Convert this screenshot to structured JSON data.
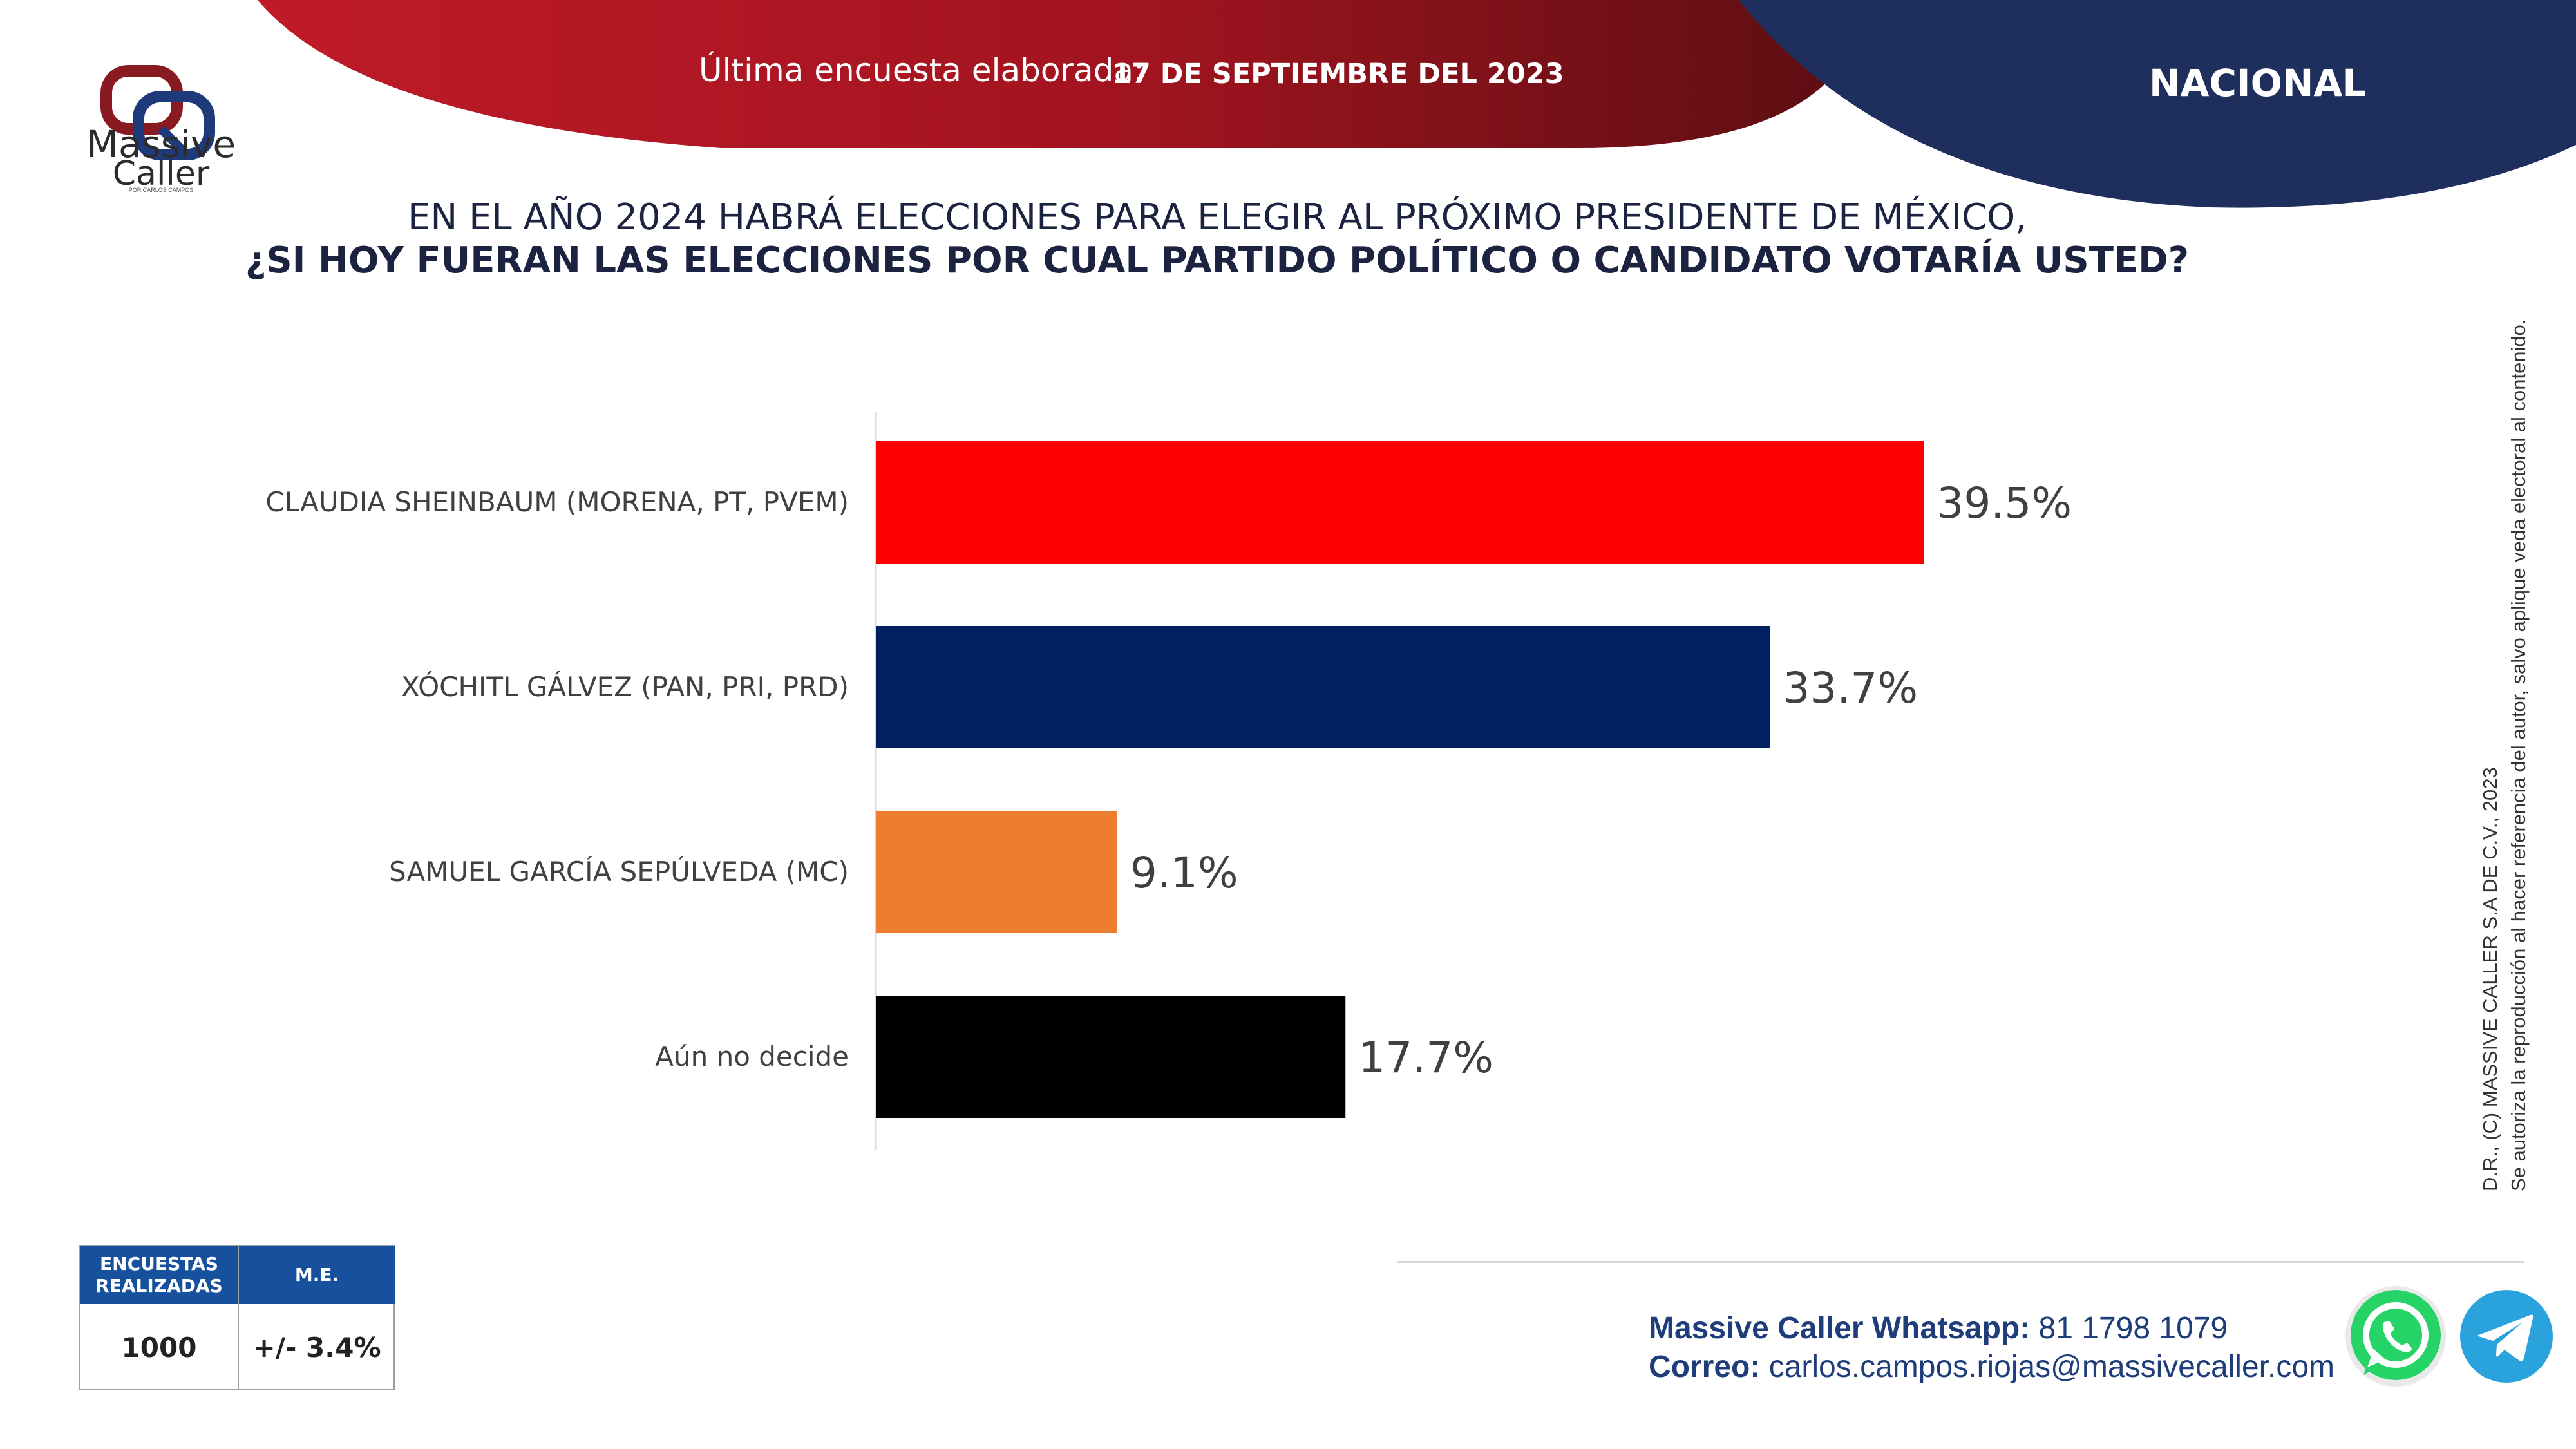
{
  "header": {
    "survey_label": "Última encuesta elaborada:",
    "survey_date": "17 DE SEPTIEMBRE DEL 2023",
    "region": "NACIONAL"
  },
  "logo": {
    "name_line1": "Massive",
    "name_line2": "Caller",
    "tagline": "POR CARLOS CAMPOS"
  },
  "question": {
    "line1": "EN EL AÑO 2024 HABRÁ ELECCIONES PARA ELEGIR AL PRÓXIMO PRESIDENTE DE MÉXICO,",
    "line2": "¿SI HOY FUERAN LAS ELECCIONES POR CUAL PARTIDO POLÍTICO O CANDIDATO VOTARÍA USTED?"
  },
  "chart_data": {
    "type": "bar",
    "orientation": "horizontal",
    "title": "",
    "xlabel": "",
    "ylabel": "",
    "grid": false,
    "legend": "none",
    "xlim": [
      0,
      50
    ],
    "categories": [
      "CLAUDIA SHEINBAUM (MORENA, PT, PVEM)",
      "XÓCHITL GÁLVEZ (PAN, PRI, PRD)",
      "SAMUEL GARCÍA SEPÚLVEDA (MC)",
      "Aún no decide"
    ],
    "values": [
      39.5,
      33.7,
      9.1,
      17.7
    ],
    "value_labels": [
      "39.5%",
      "33.7%",
      "9.1%",
      "17.7%"
    ],
    "colors": [
      "#ff0000",
      "#002060",
      "#ed7d31",
      "#000000"
    ]
  },
  "copyright": {
    "line1": "D.R., (C) MASSIVE CALLER S.A DE C.V., 2023",
    "line2": "Se autoriza la reproducción al hacer referencia del autor, salvo aplique veda electoral al contenido."
  },
  "stats": {
    "col1_header": "ENCUESTAS REALIZADAS",
    "col2_header": "M.E.",
    "col1_value": "1000",
    "col2_value": "+/- 3.4%"
  },
  "contact": {
    "whatsapp_label": "Massive Caller Whatsapp:",
    "whatsapp_number": "81 1798 1079",
    "email_label": "Correo:",
    "email": "carlos.campos.riojas@massivecaller.com"
  },
  "icons": {
    "whatsapp": "whatsapp-icon",
    "telegram": "telegram-icon"
  },
  "theme": {
    "red": "#b3121f",
    "navy": "#1e2f5e",
    "table_header": "#17519e"
  }
}
